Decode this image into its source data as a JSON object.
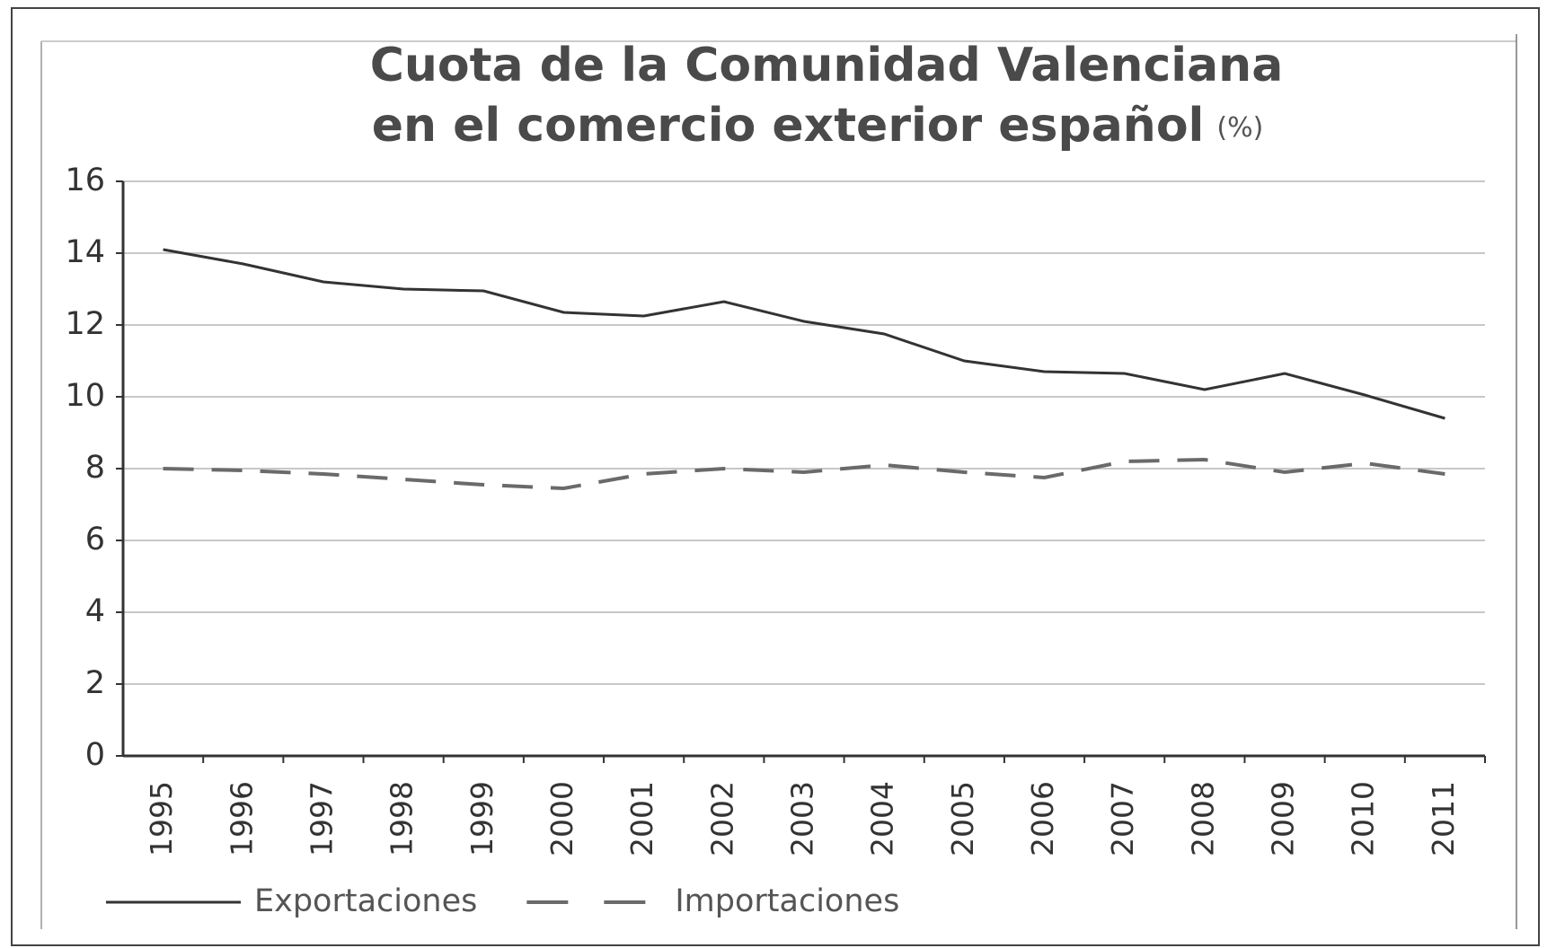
{
  "chart_data": {
    "type": "line",
    "title": [
      "Cuota de la Comunidad Valenciana",
      "en el comercio exterior español"
    ],
    "unit": "(%)",
    "categories": [
      "1995",
      "1996",
      "1997",
      "1998",
      "1999",
      "2000",
      "2001",
      "2002",
      "2003",
      "2004",
      "2005",
      "2006",
      "2007",
      "2008",
      "2009",
      "2010",
      "2011"
    ],
    "series": [
      {
        "name": "Exportaciones",
        "color": "#333333",
        "dash": false,
        "values": [
          14.1,
          13.7,
          13.2,
          13.0,
          12.95,
          12.35,
          12.25,
          12.65,
          12.1,
          11.75,
          11.0,
          10.7,
          10.65,
          10.2,
          10.65,
          10.05,
          9.4
        ]
      },
      {
        "name": "Importaciones",
        "color": "#6a6a6a",
        "dash": true,
        "values": [
          8.0,
          7.95,
          7.85,
          7.7,
          7.55,
          7.45,
          7.85,
          8.0,
          7.9,
          8.1,
          7.9,
          7.75,
          8.2,
          8.25,
          7.9,
          8.15,
          7.85
        ]
      }
    ],
    "ylim": [
      0,
      16
    ],
    "yticks": [
      0,
      2,
      4,
      6,
      8,
      10,
      12,
      14,
      16
    ],
    "grid": true
  }
}
